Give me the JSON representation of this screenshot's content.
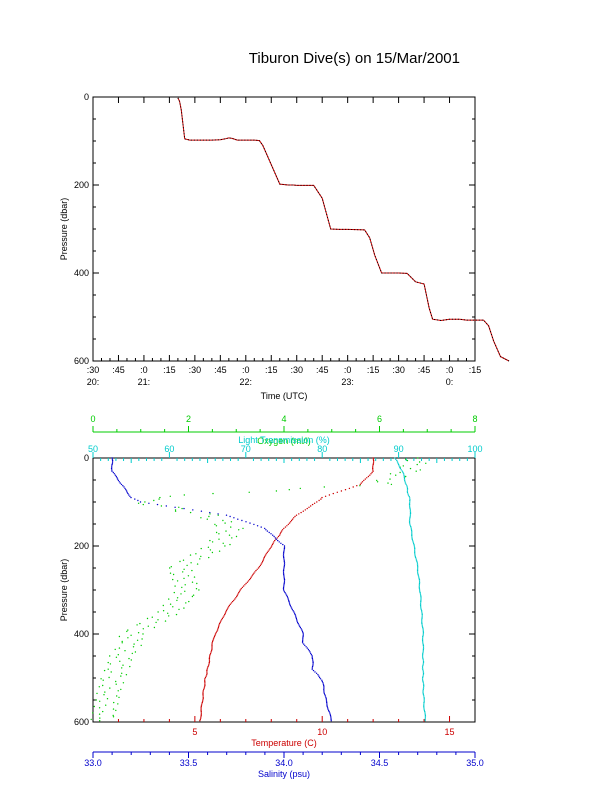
{
  "title": "Tiburon Dive(s) on 15/Mar/2001",
  "chart_data": [
    {
      "type": "line",
      "xlabel": "Time (UTC)",
      "ylabel": "Pressure (dbar)",
      "ylim": [
        0,
        600
      ],
      "y_reversed": true,
      "x_ticks": [
        {
          "minute": ":30",
          "hour": "20:"
        },
        {
          "minute": ":45",
          "hour": ""
        },
        {
          "minute": ":0",
          "hour": "21:"
        },
        {
          "minute": ":15",
          "hour": ""
        },
        {
          "minute": ":30",
          "hour": ""
        },
        {
          "minute": ":45",
          "hour": ""
        },
        {
          "minute": ":0",
          "hour": "22:"
        },
        {
          "minute": ":15",
          "hour": ""
        },
        {
          "minute": ":30",
          "hour": ""
        },
        {
          "minute": ":45",
          "hour": ""
        },
        {
          "minute": ":0",
          "hour": "23:"
        },
        {
          "minute": ":15",
          "hour": ""
        },
        {
          "minute": ":30",
          "hour": ""
        },
        {
          "minute": ":45",
          "hour": ""
        },
        {
          "minute": ":0",
          "hour": "0:"
        },
        {
          "minute": ":15",
          "hour": ""
        }
      ],
      "y_ticks": [
        "0",
        "200",
        "400",
        "600"
      ],
      "series_color": "#cc0000",
      "x_minutes_since_2030": [
        50,
        51,
        52,
        54,
        57,
        60,
        65,
        70,
        75,
        78,
        80,
        82,
        85,
        88,
        90,
        95,
        98,
        100,
        110,
        115,
        118,
        120,
        130,
        135,
        140,
        145,
        150,
        160,
        163,
        166,
        170,
        175,
        180,
        185,
        190,
        195,
        198,
        200,
        205,
        210,
        216,
        220,
        230,
        233,
        236,
        240,
        245
      ],
      "pressure": [
        2,
        10,
        30,
        95,
        98,
        98,
        98,
        98,
        97,
        95,
        93,
        94,
        98,
        98,
        98,
        98,
        99,
        110,
        198,
        200,
        200,
        201,
        201,
        230,
        300,
        301,
        301,
        302,
        320,
        360,
        400,
        400,
        400,
        401,
        420,
        425,
        480,
        505,
        508,
        505,
        505,
        507,
        507,
        520,
        555,
        590,
        600
      ]
    },
    {
      "type": "scatter",
      "ylabel": "Pressure (dbar)",
      "ylim": [
        0,
        600
      ],
      "y_reversed": true,
      "y_ticks": [
        "0",
        "200",
        "400",
        "600"
      ],
      "axes": {
        "oxygen": {
          "label": "Oxygen (ml/l)",
          "range": [
            0,
            8
          ],
          "ticks": [
            "0",
            "2",
            "4",
            "6",
            "8"
          ],
          "color": "#00cc00"
        },
        "transmission": {
          "label": "Light Transmission (%)",
          "range": [
            50,
            100
          ],
          "ticks": [
            "50",
            "60",
            "70",
            "80",
            "90",
            "100"
          ],
          "color": "#00cccc"
        },
        "temperature": {
          "label": "Temperature (C)",
          "range": [
            1,
            16
          ],
          "ticks": [
            "5",
            "10",
            "15"
          ],
          "color": "#cc0000"
        },
        "salinity": {
          "label": "Salinity (psu)",
          "range": [
            33.0,
            35.0
          ],
          "ticks": [
            "33.0",
            "33.5",
            "34.0",
            "34.5",
            "35.0"
          ],
          "color": "#0000cc"
        }
      },
      "series": [
        {
          "name": "Oxygen (ml/l)",
          "color": "#00cc00",
          "pressure": [
            0,
            30,
            60,
            90,
            100,
            130,
            160,
            200,
            250,
            300,
            350,
            400,
            420,
            450,
            480,
            505,
            550,
            600
          ],
          "values": [
            6.8,
            6.6,
            6.0,
            1.2,
            1.0,
            2.4,
            2.9,
            2.6,
            1.8,
            2.0,
            1.6,
            0.8,
            0.8,
            0.6,
            0.5,
            0.4,
            0.3,
            0.2
          ]
        },
        {
          "name": "Light Transmission (%)",
          "color": "#00cccc",
          "pressure": [
            0,
            30,
            60,
            100,
            150,
            200,
            250,
            300,
            350,
            400,
            450,
            505,
            550,
            600
          ],
          "values": [
            89.5,
            90.5,
            91.0,
            91.5,
            91.5,
            92.0,
            92.5,
            92.8,
            93.0,
            93.2,
            93.2,
            93.2,
            93.3,
            93.5
          ]
        },
        {
          "name": "Temperature (C)",
          "color": "#cc0000",
          "pressure": [
            0,
            30,
            60,
            90,
            100,
            130,
            160,
            200,
            250,
            300,
            350,
            400,
            420,
            450,
            480,
            505,
            550,
            600
          ],
          "values": [
            12.0,
            12.0,
            11.5,
            10.0,
            9.8,
            9.0,
            8.5,
            8.0,
            7.5,
            6.8,
            6.2,
            5.8,
            5.7,
            5.6,
            5.5,
            5.4,
            5.3,
            5.2
          ]
        },
        {
          "name": "Salinity (psu)",
          "color": "#0000cc",
          "pressure": [
            0,
            30,
            60,
            90,
            100,
            130,
            160,
            200,
            250,
            300,
            350,
            400,
            420,
            450,
            480,
            505,
            550,
            600
          ],
          "values": [
            33.1,
            33.1,
            33.15,
            33.2,
            33.25,
            33.7,
            33.9,
            34.0,
            34.0,
            34.0,
            34.05,
            34.1,
            34.1,
            34.15,
            34.15,
            34.2,
            34.22,
            34.25
          ]
        }
      ]
    }
  ]
}
